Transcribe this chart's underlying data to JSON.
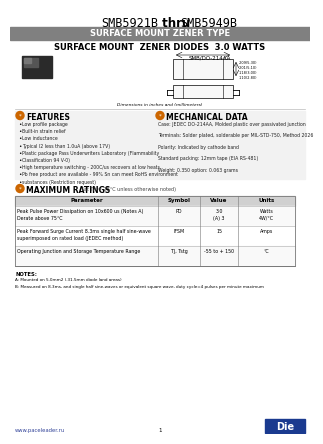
{
  "title_left": "SMB5921B",
  "title_thru": " thru ",
  "title_right": "SMB5949B",
  "title_sub": "SURFACE MOUNT ZENER TYPE",
  "subtitle": "SURFACE MOUNT  ZENER DIODES  3.0 WATTS",
  "package_label": "SMB/DO-214AA",
  "dim_label": "Dimensions in inches and (millimeters)",
  "features_title": "FEATURES",
  "features": [
    "Low profile package",
    "Built-in strain relief",
    "Low inductance",
    "Typical I2 less than 1.0uA (above 17V)",
    "Plastic package Pass Underwriters Laboratory (Flammability",
    "Classification 94 V-0)",
    "High temperature switching - 200C/us recovers at low heats",
    "Pb free product are available - 99% Sn can meet RoHS environment",
    "substances (Restriction request)"
  ],
  "mech_title": "MECHANICAL DATA",
  "mech_data": [
    "Case: JEDEC DO-214AA, Molded plastic over passivated junction",
    "Terminals: Solder plated, solderable per MIL-STD-750, Method 2026",
    "Polarity: Indicated by cathode band",
    "Standard packing: 12mm tape (EIA RS-481)",
    "Weight: 0.350 option: 0.063 grams"
  ],
  "ratings_title": "MAXIMUM RATINGS",
  "ratings_subtitle": "(at TA = 25°C unless otherwise noted)",
  "table_headers": [
    "Parameter",
    "Symbol",
    "Value",
    "Units"
  ],
  "table_rows": [
    [
      "Peak Pulse Power Dissipation on 10x600 us (Notes A)\nDerate above 75°C",
      "PD",
      "3.0\n(A) 3",
      "Watts\n4W/°C"
    ],
    [
      "Peak Forward Surge Current 8.3ms single half sine-wave\nsuperimposed on rated load (JEDEC method)",
      "IFSM",
      "15",
      "Amps"
    ],
    [
      "Operating Junction and Storage Temperature Range",
      "TJ, Tstg",
      "-55 to + 150",
      "°C"
    ]
  ],
  "notes_title": "NOTES:",
  "notes": [
    "A: Mounted on 5.0mm2 (.31.5mm diode land areas)",
    "B: Measured on 8.3ms, and single half sine-waves or equivalent square wave, duty cycle=4 pulses per minute maximum"
  ],
  "footer_web": "www.paceleader.ru",
  "footer_page": "1",
  "header_bg": "#808080",
  "header_text_color": "#ffffff",
  "accent_color": "#cc6600",
  "logo_bg": "#1a3a8f"
}
